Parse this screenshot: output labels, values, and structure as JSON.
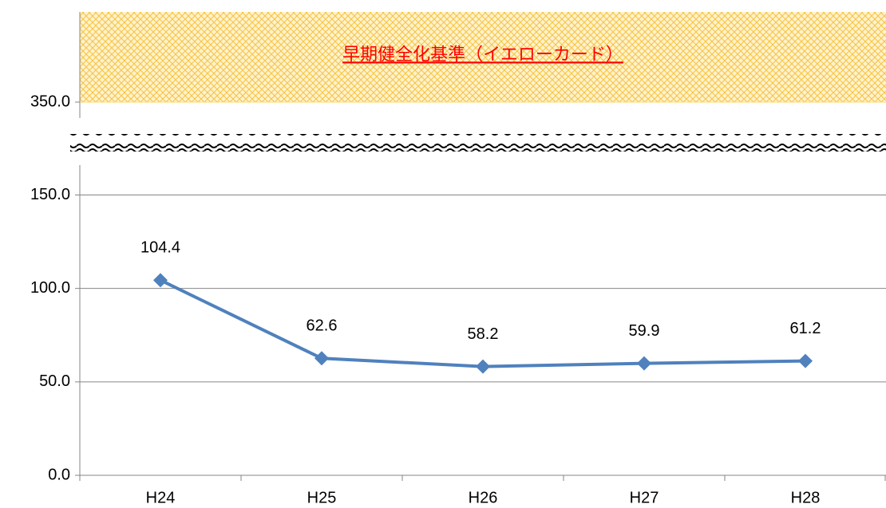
{
  "chart_data": {
    "type": "line",
    "categories": [
      "H24",
      "H25",
      "H26",
      "H27",
      "H28"
    ],
    "values": [
      104.4,
      62.6,
      58.2,
      59.9,
      61.2
    ],
    "color": "#4f81bd",
    "ylim": [
      0,
      166
    ],
    "yticks": [
      {
        "value": 0,
        "label": "0.0"
      },
      {
        "value": 50,
        "label": "50.0"
      },
      {
        "value": 100,
        "label": "100.0"
      },
      {
        "value": 150,
        "label": "150.0"
      }
    ],
    "grid": true,
    "upper_axis": {
      "ylim": [
        341.5,
        398
      ],
      "yticks": [
        {
          "value": 350,
          "label": "350.0"
        }
      ],
      "band": {
        "from": 350,
        "label": "早期健全化基準（イエローカード）",
        "color": "#ffd966",
        "label_color": "#ff0000"
      }
    }
  }
}
